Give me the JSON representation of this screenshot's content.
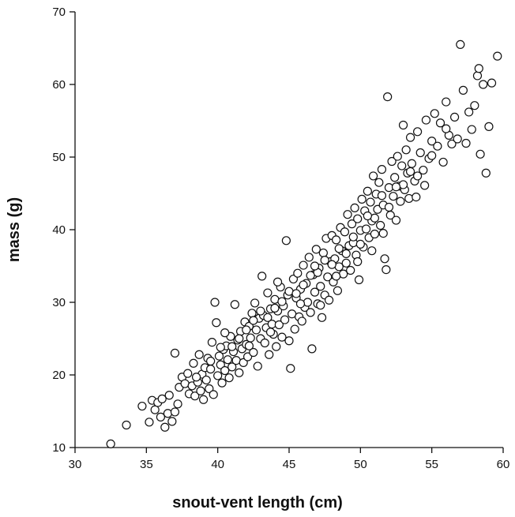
{
  "chart_data": {
    "type": "scatter",
    "title": "",
    "xlabel": "snout-vent length (cm)",
    "ylabel": "mass (g)",
    "xlim": [
      30,
      60
    ],
    "ylim": [
      10,
      70
    ],
    "xticks": [
      "30",
      "35",
      "40",
      "45",
      "50",
      "55",
      "60"
    ],
    "yticks": [
      "10",
      "20",
      "30",
      "40",
      "50",
      "60",
      "70"
    ],
    "grid": false,
    "legend": "none",
    "marker": "open-circle",
    "points": [
      [
        32.5,
        10.5
      ],
      [
        33.6,
        13.1
      ],
      [
        34.7,
        15.7
      ],
      [
        35.2,
        13.5
      ],
      [
        35.4,
        16.5
      ],
      [
        35.6,
        15.2
      ],
      [
        35.8,
        16.2
      ],
      [
        36.0,
        14.2
      ],
      [
        36.1,
        16.7
      ],
      [
        36.3,
        12.8
      ],
      [
        36.5,
        14.7
      ],
      [
        36.6,
        17.2
      ],
      [
        36.8,
        13.6
      ],
      [
        37.0,
        14.9
      ],
      [
        37.2,
        16.0
      ],
      [
        37.0,
        23.0
      ],
      [
        37.3,
        18.3
      ],
      [
        37.5,
        19.7
      ],
      [
        37.7,
        18.8
      ],
      [
        37.9,
        20.2
      ],
      [
        38.0,
        17.4
      ],
      [
        38.2,
        18.5
      ],
      [
        38.3,
        21.6
      ],
      [
        38.4,
        17.1
      ],
      [
        38.6,
        19.0
      ],
      [
        38.7,
        22.8
      ],
      [
        38.8,
        17.8
      ],
      [
        38.9,
        20.1
      ],
      [
        39.0,
        16.6
      ],
      [
        39.1,
        21.0
      ],
      [
        39.2,
        19.3
      ],
      [
        39.3,
        22.3
      ],
      [
        39.4,
        18.1
      ],
      [
        39.5,
        20.8
      ],
      [
        39.6,
        24.5
      ],
      [
        39.7,
        17.3
      ],
      [
        39.8,
        30.0
      ],
      [
        39.9,
        27.2
      ],
      [
        40.0,
        19.9
      ],
      [
        40.1,
        22.6
      ],
      [
        40.2,
        21.4
      ],
      [
        40.3,
        18.9
      ],
      [
        40.4,
        23.5
      ],
      [
        40.5,
        20.6
      ],
      [
        40.6,
        24.0
      ],
      [
        40.7,
        22.1
      ],
      [
        40.8,
        19.6
      ],
      [
        40.9,
        25.3
      ],
      [
        41.0,
        21.1
      ],
      [
        41.1,
        23.2
      ],
      [
        41.2,
        29.7
      ],
      [
        41.3,
        22.0
      ],
      [
        41.4,
        24.8
      ],
      [
        41.5,
        20.3
      ],
      [
        41.6,
        26.0
      ],
      [
        41.7,
        23.6
      ],
      [
        41.8,
        21.7
      ],
      [
        41.9,
        27.3
      ],
      [
        42.0,
        24.2
      ],
      [
        42.1,
        22.5
      ],
      [
        42.2,
        26.7
      ],
      [
        42.3,
        25.1
      ],
      [
        42.4,
        28.5
      ],
      [
        42.5,
        23.1
      ],
      [
        42.6,
        29.9
      ],
      [
        42.7,
        26.2
      ],
      [
        42.8,
        21.2
      ],
      [
        42.9,
        27.8
      ],
      [
        43.0,
        25.0
      ],
      [
        43.1,
        33.6
      ],
      [
        43.2,
        28.2
      ],
      [
        43.3,
        24.4
      ],
      [
        43.4,
        26.5
      ],
      [
        43.5,
        31.3
      ],
      [
        43.6,
        22.8
      ],
      [
        43.7,
        29.1
      ],
      [
        43.8,
        27.0
      ],
      [
        43.9,
        25.6
      ],
      [
        44.0,
        30.4
      ],
      [
        44.1,
        23.9
      ],
      [
        44.2,
        28.8
      ],
      [
        44.3,
        26.9
      ],
      [
        44.4,
        32.1
      ],
      [
        44.5,
        25.2
      ],
      [
        44.6,
        29.5
      ],
      [
        44.7,
        27.6
      ],
      [
        44.8,
        38.5
      ],
      [
        44.9,
        31.0
      ],
      [
        45.0,
        24.7
      ],
      [
        45.1,
        20.9
      ],
      [
        45.2,
        28.4
      ],
      [
        45.3,
        33.2
      ],
      [
        45.4,
        26.3
      ],
      [
        45.5,
        30.6
      ],
      [
        45.6,
        34.0
      ],
      [
        45.7,
        28.0
      ],
      [
        45.8,
        31.8
      ],
      [
        45.9,
        27.4
      ],
      [
        46.0,
        35.1
      ],
      [
        46.1,
        29.3
      ],
      [
        46.2,
        32.6
      ],
      [
        46.3,
        30.0
      ],
      [
        46.4,
        36.2
      ],
      [
        46.5,
        28.6
      ],
      [
        46.6,
        23.6
      ],
      [
        46.7,
        33.8
      ],
      [
        46.8,
        31.4
      ],
      [
        46.9,
        37.3
      ],
      [
        47.0,
        29.8
      ],
      [
        47.1,
        34.7
      ],
      [
        47.2,
        32.2
      ],
      [
        47.3,
        27.9
      ],
      [
        47.4,
        36.8
      ],
      [
        47.5,
        31.0
      ],
      [
        47.6,
        38.8
      ],
      [
        47.7,
        33.5
      ],
      [
        47.8,
        30.3
      ],
      [
        47.9,
        35.6
      ],
      [
        48.0,
        39.2
      ],
      [
        48.1,
        32.8
      ],
      [
        48.2,
        36.0
      ],
      [
        48.3,
        38.6
      ],
      [
        48.4,
        31.6
      ],
      [
        48.5,
        34.9
      ],
      [
        48.6,
        40.3
      ],
      [
        48.7,
        37.1
      ],
      [
        48.8,
        33.9
      ],
      [
        48.9,
        39.7
      ],
      [
        49.0,
        35.4
      ],
      [
        49.1,
        42.1
      ],
      [
        49.2,
        37.8
      ],
      [
        49.3,
        34.4
      ],
      [
        49.4,
        40.8
      ],
      [
        49.5,
        38.2
      ],
      [
        49.6,
        43.0
      ],
      [
        49.7,
        36.5
      ],
      [
        49.8,
        41.5
      ],
      [
        49.9,
        33.1
      ],
      [
        50.0,
        39.9
      ],
      [
        50.1,
        44.2
      ],
      [
        50.2,
        37.6
      ],
      [
        50.3,
        42.6
      ],
      [
        50.4,
        40.1
      ],
      [
        50.5,
        45.3
      ],
      [
        50.6,
        38.9
      ],
      [
        50.7,
        43.8
      ],
      [
        50.8,
        41.2
      ],
      [
        50.9,
        47.4
      ],
      [
        51.0,
        39.4
      ],
      [
        51.1,
        44.9
      ],
      [
        51.2,
        42.8
      ],
      [
        51.3,
        46.5
      ],
      [
        51.4,
        40.6
      ],
      [
        51.5,
        48.3
      ],
      [
        51.6,
        43.4
      ],
      [
        51.7,
        36.0
      ],
      [
        51.8,
        34.5
      ],
      [
        51.9,
        58.3
      ],
      [
        52.0,
        45.8
      ],
      [
        52.1,
        42.0
      ],
      [
        52.2,
        49.4
      ],
      [
        52.3,
        44.6
      ],
      [
        52.4,
        47.2
      ],
      [
        52.5,
        41.3
      ],
      [
        52.6,
        50.1
      ],
      [
        52.7,
        46.0
      ],
      [
        52.8,
        43.9
      ],
      [
        52.9,
        48.8
      ],
      [
        53.0,
        54.4
      ],
      [
        53.1,
        45.5
      ],
      [
        53.2,
        51.0
      ],
      [
        53.3,
        47.8
      ],
      [
        53.4,
        44.3
      ],
      [
        53.5,
        52.7
      ],
      [
        53.6,
        49.1
      ],
      [
        53.8,
        46.7
      ],
      [
        54.0,
        53.5
      ],
      [
        54.2,
        50.6
      ],
      [
        54.4,
        48.2
      ],
      [
        54.6,
        55.1
      ],
      [
        54.8,
        49.8
      ],
      [
        55.0,
        52.2
      ],
      [
        55.2,
        56.0
      ],
      [
        55.4,
        51.5
      ],
      [
        55.6,
        54.7
      ],
      [
        55.8,
        49.3
      ],
      [
        56.0,
        57.6
      ],
      [
        56.2,
        53.0
      ],
      [
        56.4,
        51.8
      ],
      [
        56.6,
        55.5
      ],
      [
        56.8,
        52.5
      ],
      [
        57.0,
        65.5
      ],
      [
        57.2,
        59.2
      ],
      [
        57.4,
        51.9
      ],
      [
        57.6,
        56.2
      ],
      [
        57.8,
        53.8
      ],
      [
        58.0,
        57.1
      ],
      [
        58.2,
        61.2
      ],
      [
        58.3,
        62.2
      ],
      [
        58.4,
        50.4
      ],
      [
        58.6,
        60.0
      ],
      [
        58.8,
        47.8
      ],
      [
        59.0,
        54.2
      ],
      [
        59.2,
        60.2
      ],
      [
        59.6,
        63.9
      ],
      [
        40.5,
        25.8
      ],
      [
        41.5,
        25.0
      ],
      [
        42.0,
        26.2
      ],
      [
        43.0,
        28.8
      ],
      [
        44.0,
        29.2
      ],
      [
        45.0,
        31.5
      ],
      [
        46.0,
        32.4
      ],
      [
        47.0,
        34.1
      ],
      [
        48.0,
        35.2
      ],
      [
        49.0,
        36.7
      ],
      [
        50.0,
        38.0
      ],
      [
        51.0,
        41.6
      ],
      [
        52.0,
        43.1
      ],
      [
        53.0,
        46.2
      ],
      [
        54.0,
        47.4
      ],
      [
        38.5,
        19.7
      ],
      [
        39.5,
        21.9
      ],
      [
        40.2,
        23.8
      ],
      [
        41.0,
        23.9
      ],
      [
        42.5,
        27.5
      ],
      [
        43.5,
        27.9
      ],
      [
        44.5,
        30.1
      ],
      [
        45.5,
        31.2
      ],
      [
        46.5,
        33.7
      ],
      [
        47.5,
        35.8
      ],
      [
        48.5,
        37.4
      ],
      [
        49.5,
        39.0
      ],
      [
        50.5,
        41.9
      ],
      [
        51.5,
        44.7
      ],
      [
        52.5,
        45.9
      ],
      [
        53.5,
        48.0
      ],
      [
        55.0,
        50.2
      ],
      [
        56.0,
        53.9
      ],
      [
        44.2,
        32.8
      ],
      [
        46.8,
        35.0
      ],
      [
        48.3,
        33.6
      ],
      [
        50.8,
        37.1
      ],
      [
        47.2,
        29.6
      ],
      [
        45.8,
        29.8
      ],
      [
        43.7,
        25.9
      ],
      [
        42.2,
        24.0
      ],
      [
        49.8,
        35.6
      ],
      [
        51.6,
        39.5
      ],
      [
        53.9,
        44.5
      ],
      [
        54.5,
        46.1
      ]
    ]
  }
}
